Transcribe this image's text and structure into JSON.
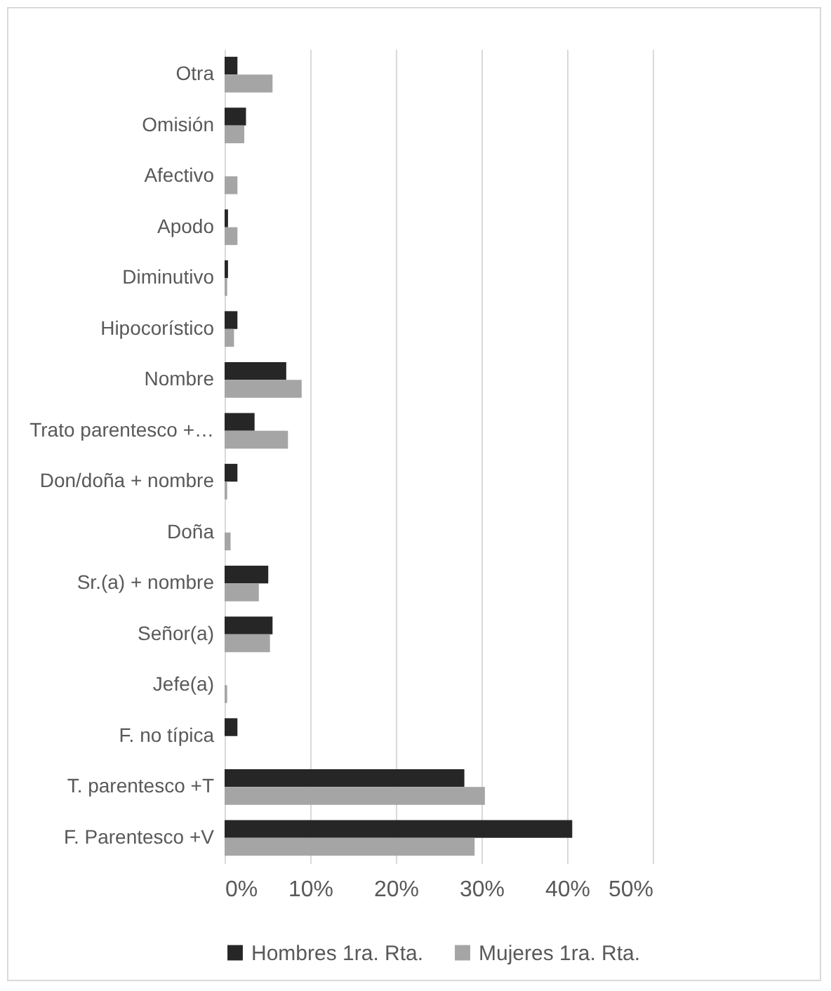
{
  "chart_data": {
    "type": "bar",
    "orientation": "horizontal",
    "categories": [
      "Otra",
      "Omisión",
      "Afectivo",
      "Apodo",
      "Diminutivo",
      "Hipocorístico",
      "Nombre",
      "Trato parentesco +…",
      "Don/doña + nombre",
      "Doña",
      "Sr.(a) + nombre",
      "Señor(a)",
      "Jefe(a)",
      "F.  no típica",
      "T. parentesco +T",
      "F. Parentesco +V"
    ],
    "series": [
      {
        "name": "Hombres 1ra. Rta.",
        "color": "#262626",
        "values": [
          1.5,
          2.5,
          0,
          0.4,
          0.4,
          1.5,
          7.2,
          3.5,
          1.5,
          0,
          5.1,
          5.6,
          0,
          1.5,
          28.0,
          40.6
        ]
      },
      {
        "name": "Mujeres 1ra. Rta.",
        "color": "#a5a5a5",
        "values": [
          5.6,
          2.3,
          1.5,
          1.5,
          0.3,
          1.1,
          9.0,
          7.4,
          0.3,
          0.7,
          4.0,
          5.3,
          0.3,
          0,
          30.4,
          29.2
        ]
      }
    ],
    "xlim": [
      0,
      50
    ],
    "xticks": [
      {
        "value": 0,
        "label": "0%"
      },
      {
        "value": 10,
        "label": "10%"
      },
      {
        "value": 20,
        "label": "20%"
      },
      {
        "value": 30,
        "label": "30%"
      },
      {
        "value": 40,
        "label": "40%"
      },
      {
        "value": 50,
        "label": "50%"
      }
    ],
    "grid": "x",
    "legend": "bottom"
  }
}
